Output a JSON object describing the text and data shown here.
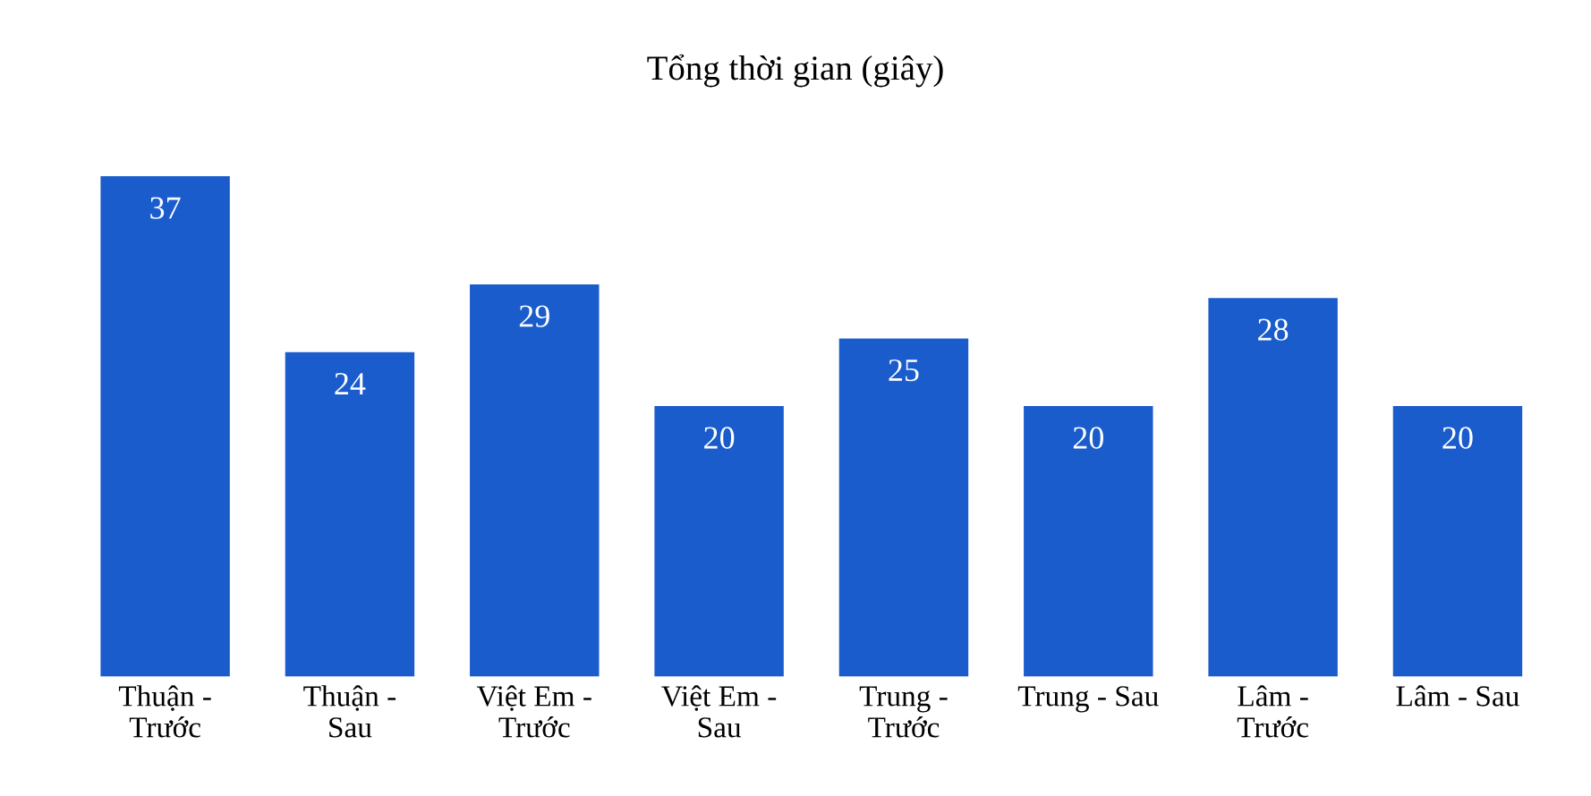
{
  "chart_data": {
    "type": "bar",
    "title": "Tổng thời gian (giây)",
    "categories": [
      "Thuận -\nTrước",
      "Thuận -\nSau",
      "Việt Em -\nTrước",
      "Việt Em -\nSau",
      "Trung -\nTrước",
      "Trung - Sau",
      "Lâm -\nTrước",
      "Lâm - Sau"
    ],
    "values": [
      37,
      24,
      29,
      20,
      25,
      20,
      28,
      20
    ],
    "color": "#1a5ccc",
    "data_labels": true,
    "grid": false,
    "legend": false
  }
}
